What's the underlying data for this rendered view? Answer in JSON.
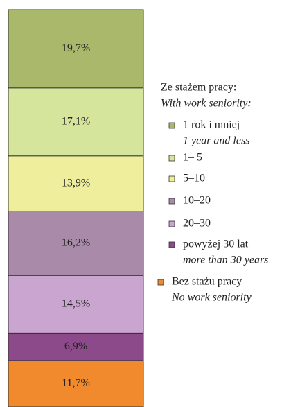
{
  "chart_data": {
    "type": "stacked_bar",
    "legend_title": "Ze stażem pracy:",
    "legend_subtitle": "With work seniority:",
    "series": [
      {
        "name": "1 rok i mniej",
        "name_en": "1 year and less",
        "color": "#aab86c",
        "values": [
          19.7
        ],
        "value_labels": [
          "19,7%"
        ]
      },
      {
        "name": "1– 5",
        "color": "#d6e59c",
        "values": [
          17.1
        ],
        "value_labels": [
          "17,1%"
        ]
      },
      {
        "name": "5–10",
        "color": "#eeee9c",
        "values": [
          13.9
        ],
        "value_labels": [
          "13,9%"
        ]
      },
      {
        "name": "10–20",
        "color": "#a98ba9",
        "values": [
          16.2
        ],
        "value_labels": [
          "16,2%"
        ]
      },
      {
        "name": "20–30",
        "color": "#c9a5cf",
        "values": [
          14.5
        ],
        "value_labels": [
          "14,5%"
        ]
      },
      {
        "name": "powyżej 30 lat",
        "name_en": "more than 30 years",
        "color": "#8c4a8b",
        "values": [
          6.9
        ],
        "value_labels": [
          "6,9%"
        ]
      },
      {
        "name": "Bez stażu pracy",
        "name_en": "No work seniority",
        "color": "#f08a2c",
        "values": [
          11.7
        ],
        "value_labels": [
          "11,7%"
        ]
      }
    ]
  }
}
